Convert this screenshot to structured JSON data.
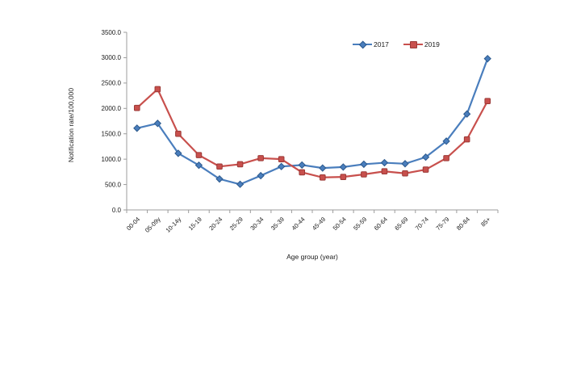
{
  "chart_data": {
    "type": "line",
    "title": "",
    "xlabel": "Age group (year)",
    "ylabel": "Notification rate/100,000",
    "categories": [
      "00-04",
      "05-09y",
      "10-14y",
      "15-19",
      "20-24",
      "25-29",
      "30-34",
      "35-39",
      "40-44",
      "45-49",
      "50-54",
      "55-59",
      "60-64",
      "65-69",
      "70-74",
      "75-79",
      "80-84",
      "85+"
    ],
    "series": [
      {
        "name": "2017",
        "marker": "diamond",
        "color": "#4A7EBD",
        "edge_color": "#2C598C",
        "values": [
          1610,
          1705,
          1115,
          880,
          610,
          505,
          675,
          855,
          885,
          825,
          845,
          900,
          930,
          910,
          1040,
          1355,
          1890,
          2980
        ]
      },
      {
        "name": "2019",
        "marker": "square",
        "color": "#C8504D",
        "edge_color": "#9B3936",
        "values": [
          2010,
          2380,
          1500,
          1080,
          855,
          900,
          1020,
          1000,
          740,
          640,
          650,
          700,
          760,
          720,
          795,
          1020,
          1390,
          2145
        ]
      }
    ],
    "ylim": [
      0,
      3500
    ],
    "ytick_step": 500,
    "ytick_decimals": 1,
    "grid": false,
    "legend_position": "inside-top-right",
    "axis_color": "#9c9c9c",
    "tick_label_color": "#1a1a1a"
  }
}
